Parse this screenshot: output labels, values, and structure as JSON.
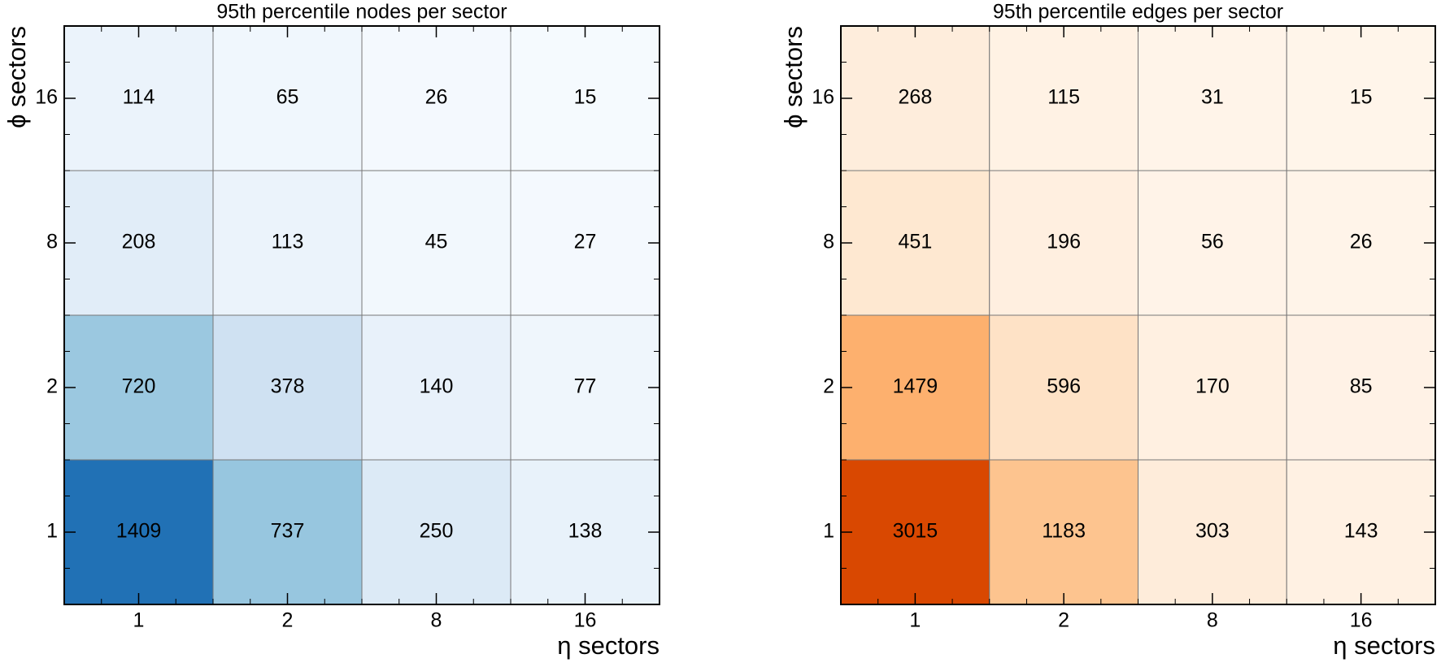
{
  "chart_data": [
    {
      "type": "heatmap",
      "title": "95th percentile nodes per sector",
      "x_label": "η sectors",
      "y_label": "ϕ sectors",
      "x_categories": [
        "1",
        "2",
        "8",
        "16"
      ],
      "y_categories": [
        "1",
        "2",
        "8",
        "16"
      ],
      "values": [
        [
          1409,
          737,
          250,
          138
        ],
        [
          720,
          378,
          140,
          77
        ],
        [
          208,
          113,
          45,
          27
        ],
        [
          114,
          65,
          26,
          15
        ]
      ],
      "colormap": [
        "#f7fbff",
        "#deebf7",
        "#c6dbef",
        "#9ecae1",
        "#6baed6",
        "#4292c6",
        "#2171b5"
      ]
    },
    {
      "type": "heatmap",
      "title": "95th percentile edges per sector",
      "x_label": "η sectors",
      "y_label": "ϕ sectors",
      "x_categories": [
        "1",
        "2",
        "8",
        "16"
      ],
      "y_categories": [
        "1",
        "2",
        "8",
        "16"
      ],
      "values": [
        [
          3015,
          1183,
          303,
          143
        ],
        [
          1479,
          596,
          170,
          85
        ],
        [
          451,
          196,
          56,
          26
        ],
        [
          268,
          115,
          31,
          15
        ]
      ],
      "colormap": [
        "#fff5eb",
        "#fee6ce",
        "#fdd0a2",
        "#fdae6b",
        "#fd8d3c",
        "#f16913",
        "#d94801"
      ]
    }
  ]
}
